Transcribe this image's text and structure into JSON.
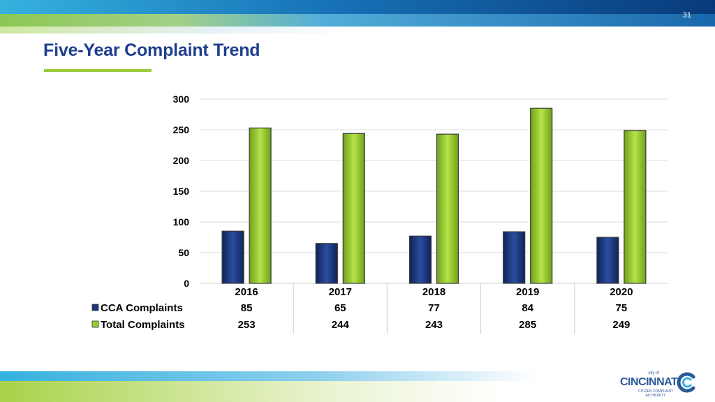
{
  "page_number": "31",
  "title": "Five-Year Complaint Trend",
  "colors": {
    "title": "#1f3f8f",
    "accent_green": "#9ccb3b",
    "cca_bar": "#1a3478",
    "total_bar": "#9acd32",
    "band_blue": "#0a4f9a"
  },
  "chart_data": {
    "type": "bar",
    "categories": [
      "2016",
      "2017",
      "2018",
      "2019",
      "2020"
    ],
    "series": [
      {
        "name": "CCA Complaints",
        "values": [
          85,
          65,
          77,
          84,
          75
        ],
        "color": "#1a3478"
      },
      {
        "name": "Total Complaints",
        "values": [
          253,
          244,
          243,
          285,
          249
        ],
        "color": "#9acd32"
      }
    ],
    "y_ticks": [
      0,
      50,
      100,
      150,
      200,
      250,
      300
    ],
    "ylim": [
      0,
      300
    ],
    "grid": true,
    "legend": "data table below chart"
  },
  "logo": {
    "city_of": "city of",
    "name": "CINCINNATI",
    "subtitle_line1": "CITIZEN COMPLAINT",
    "subtitle_line2": "AUTHORITY"
  }
}
